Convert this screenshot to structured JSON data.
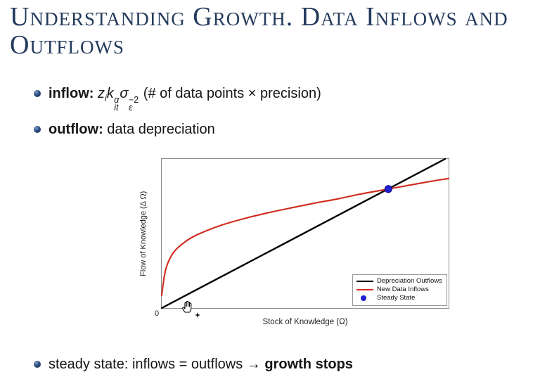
{
  "slide": {
    "title": {
      "line1": "Understanding Growth. Data Inflows and",
      "line2": "Outflows"
    },
    "bullets": {
      "inflow": {
        "label": "inflow:",
        "math": {
          "z": "z",
          "z_sub": "i",
          "k": "k",
          "k_sup": "α",
          "k_sub": "it",
          "sigma": "σ",
          "sigma_sup": "−2",
          "sigma_sub": "ε"
        },
        "tail": " (# of data points × precision)"
      },
      "outflow": {
        "label": "outflow:",
        "text": " data depreciation"
      },
      "steady": {
        "pre": "steady state: inflows = outflows → ",
        "bold": "growth stops"
      }
    },
    "icons": {
      "cursor": "grab-hand-cursor",
      "cursor_badge": "small-star"
    },
    "colors": {
      "title": "#233a5c",
      "bullet_ball": "#1d3d6b",
      "body_text": "#161616",
      "axis_box": "#8c8c8c"
    }
  },
  "chart_data": {
    "type": "line",
    "title": "",
    "xlabel": "Stock of Knowledge (Ω)",
    "ylabel": "Flow of Knowledge (Δ Ω)",
    "origin_tick": "0",
    "xlim": [
      0,
      1
    ],
    "ylim": [
      0,
      1
    ],
    "grid": false,
    "legend_position": "lower right",
    "series": [
      {
        "name": "Depreciation Outflows",
        "color": "#000000",
        "kind": "line",
        "stroke_width": 2.4,
        "points": [
          [
            0,
            0
          ],
          [
            0.988,
            1.0
          ]
        ]
      },
      {
        "name": "New Data Inflows",
        "color": "#d02c1f",
        "kind": "line",
        "stroke_width": 2.1,
        "points": [
          [
            0,
            0.085
          ],
          [
            0.01,
            0.225
          ],
          [
            0.022,
            0.305
          ],
          [
            0.044,
            0.38
          ],
          [
            0.083,
            0.446
          ],
          [
            0.125,
            0.493
          ],
          [
            0.205,
            0.554
          ],
          [
            0.289,
            0.601
          ],
          [
            0.369,
            0.638
          ],
          [
            0.45,
            0.671
          ],
          [
            0.533,
            0.704
          ],
          [
            0.614,
            0.732
          ],
          [
            0.694,
            0.765
          ],
          [
            0.79,
            0.798
          ],
          [
            0.858,
            0.822
          ],
          [
            0.939,
            0.85
          ],
          [
            1.0,
            0.869
          ]
        ]
      },
      {
        "name": "Steady State",
        "color": "#2121d3",
        "edge_color": "#00008b",
        "kind": "point",
        "radius": 5,
        "points": [
          [
            0.79,
            0.798
          ]
        ]
      }
    ]
  }
}
